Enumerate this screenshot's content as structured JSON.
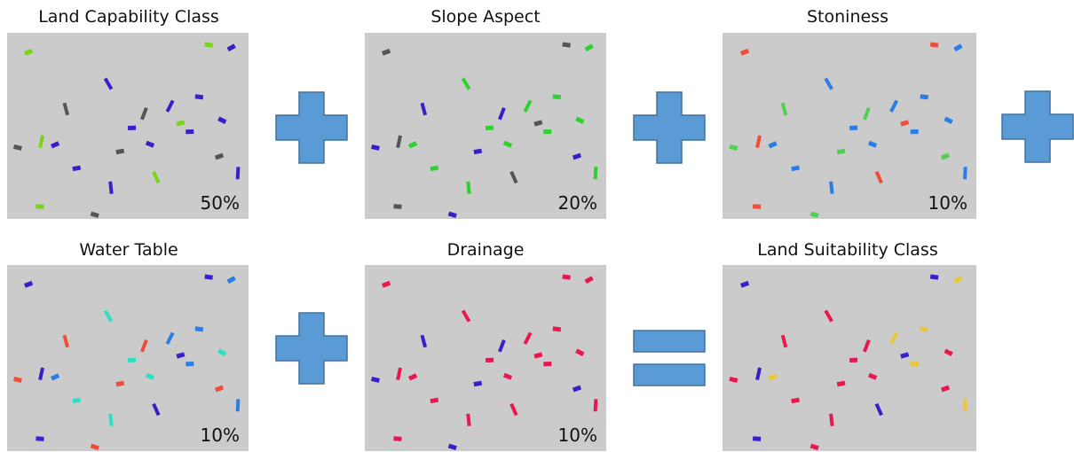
{
  "panels": [
    {
      "title": "Land Capability Class",
      "weight": "50%"
    },
    {
      "title": "Slope Aspect",
      "weight": "20%"
    },
    {
      "title": "Stoniness",
      "weight": "10%"
    },
    {
      "title": "Water Table",
      "weight": "10%"
    },
    {
      "title": "Drainage",
      "weight": "10%"
    },
    {
      "title": "Land Suitability Class"
    }
  ]
}
